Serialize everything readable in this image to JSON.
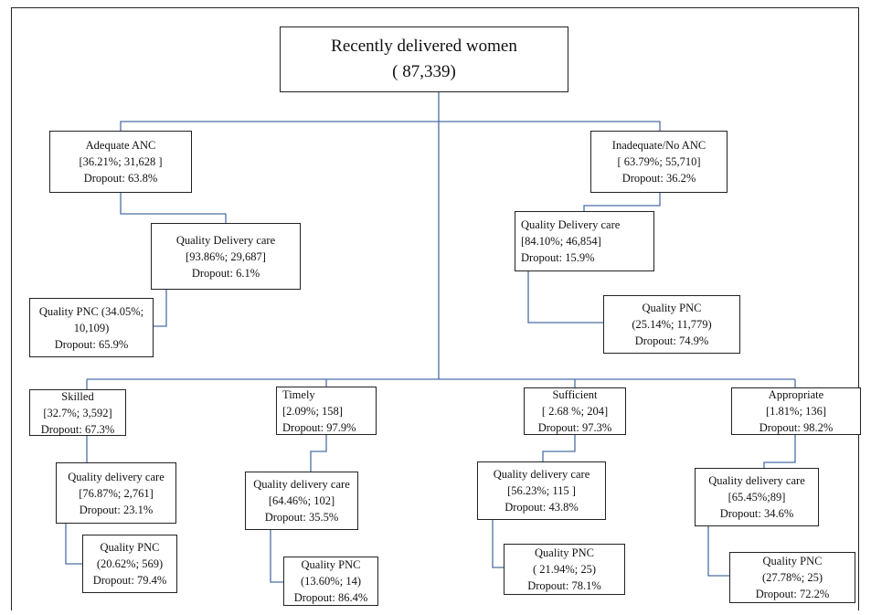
{
  "root": {
    "line1": "Recently delivered women",
    "line2": "( 87,339)"
  },
  "adequate": {
    "title": "Adequate ANC",
    "stats": "[36.21%;  31,628 ]",
    "dropout": "Dropout: 63.8%"
  },
  "adequate_delivery": {
    "title": "Quality Delivery care",
    "stats": "[93.86%;  29,687]",
    "dropout": "Dropout: 6.1%"
  },
  "adequate_pnc": {
    "title": "Quality PNC (34.05%;",
    "stats": "10,109)",
    "dropout": "Dropout: 65.9%"
  },
  "inadequate": {
    "title": "Inadequate/No ANC",
    "stats": "[ 63.79%;  55,710]",
    "dropout": "Dropout: 36.2%"
  },
  "inadequate_delivery": {
    "title": "Quality Delivery care",
    "stats": "[84.10%; 46,854]",
    "dropout": "Dropout:  15.9%"
  },
  "inadequate_pnc": {
    "title": "Quality PNC",
    "stats": "(25.14%;  11,779)",
    "dropout": "Dropout: 74.9%"
  },
  "skilled": {
    "title": "Skilled",
    "stats": "[32.7%;  3,592]",
    "dropout": "Dropout: 67.3%"
  },
  "skilled_delivery": {
    "title": "Quality delivery care",
    "stats": "[76.87%;  2,761]",
    "dropout": "Dropout: 23.1%"
  },
  "skilled_pnc": {
    "title": "Quality PNC",
    "stats": "(20.62%;  569)",
    "dropout": "Dropout: 79.4%"
  },
  "timely": {
    "title": "Timely",
    "stats": "[2.09%;  158]",
    "dropout": "Dropout: 97.9%"
  },
  "timely_delivery": {
    "title": "Quality delivery care",
    "stats": "[64.46%;  102]",
    "dropout": "Dropout: 35.5%"
  },
  "timely_pnc": {
    "title": "Quality PNC",
    "stats": "(13.60%;  14)",
    "dropout": "Dropout: 86.4%"
  },
  "sufficient": {
    "title": "Sufficient",
    "stats": "[ 2.68 %;   204]",
    "dropout": "Dropout: 97.3%"
  },
  "sufficient_delivery": {
    "title": "Quality delivery care",
    "stats": "[56.23%;  115 ]",
    "dropout": "Dropout: 43.8%"
  },
  "sufficient_pnc": {
    "title": "Quality PNC",
    "stats": "( 21.94%;   25)",
    "dropout": "Dropout: 78.1%"
  },
  "appropriate": {
    "title": "Appropriate",
    "stats": "[1.81%;  136]",
    "dropout": "Dropout: 98.2%"
  },
  "appropriate_delivery": {
    "title": "Quality delivery care",
    "stats": "[65.45%;89]",
    "dropout": "Dropout: 34.6%"
  },
  "appropriate_pnc": {
    "title": "Quality PNC",
    "stats": "(27.78%;  25)",
    "dropout": "Dropout: 72.2%"
  },
  "colors": {
    "connector": "#4a6fa5",
    "border": "#222222"
  }
}
